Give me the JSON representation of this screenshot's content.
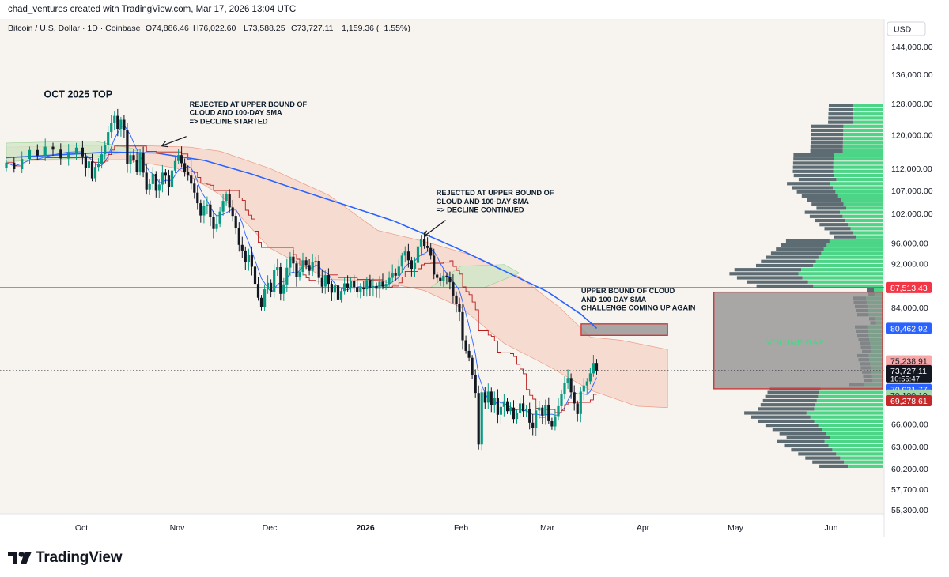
{
  "header": {
    "attribution": "chad_ventures created with TradingView.com, Mar 17, 2026 13:04 UTC"
  },
  "footer": {
    "logo_text": "TradingView"
  },
  "chart_data": {
    "type": "candlestick",
    "instrument": "Bitcoin / U.S. Dollar · 1D · Coinbase",
    "ohlc": {
      "open": "O74,886.46",
      "high": "H76,022.60",
      "low": "L73,588.25",
      "close": "C73,727.11",
      "change": "−1,159.36 (−1.55%)"
    },
    "currency": "USD",
    "ylim": [
      54000,
      150000
    ],
    "x_ticks": [
      {
        "label": "Oct",
        "date": "2025-10-01",
        "bold": false
      },
      {
        "label": "Nov",
        "date": "2025-11-01",
        "bold": false
      },
      {
        "label": "Dec",
        "date": "2025-12-01",
        "bold": false
      },
      {
        "label": "2026",
        "date": "2026-01-01",
        "bold": true
      },
      {
        "label": "Feb",
        "date": "2026-02-01",
        "bold": false
      },
      {
        "label": "Mar",
        "date": "2026-03-01",
        "bold": false
      },
      {
        "label": "Apr",
        "date": "2026-04-01",
        "bold": false
      },
      {
        "label": "May",
        "date": "2026-05-01",
        "bold": false
      },
      {
        "label": "Jun",
        "date": "2026-06-01",
        "bold": false
      }
    ],
    "y_ticks": [
      {
        "value": 144000,
        "label": "144,000.00"
      },
      {
        "value": 136000,
        "label": "136,000.00"
      },
      {
        "value": 128000,
        "label": "128,000.00"
      },
      {
        "value": 120000,
        "label": "120,000.00"
      },
      {
        "value": 112000,
        "label": "112,000.00"
      },
      {
        "value": 107000,
        "label": "107,000.00"
      },
      {
        "value": 102000,
        "label": "102,000.00"
      },
      {
        "value": 96000,
        "label": "96,000.00"
      },
      {
        "value": 92000,
        "label": "92,000.00"
      },
      {
        "value": 84000,
        "label": "84,000.00"
      },
      {
        "value": 66000,
        "label": "66,000.00"
      },
      {
        "value": 63000,
        "label": "63,000.00"
      },
      {
        "value": 60200,
        "label": "60,200.00"
      },
      {
        "value": 57700,
        "label": "57,700.00"
      },
      {
        "value": 55300,
        "label": "55,300.00"
      }
    ],
    "price_badges": [
      {
        "value": 87513.43,
        "label": "87,513.43",
        "color": "#f23645",
        "light": false
      },
      {
        "value": 80462.92,
        "label": "80,462.92",
        "color": "#2962ff",
        "light": false
      },
      {
        "value": 75238.91,
        "label": "75,238.91",
        "color": "#f7a9a9",
        "light": true
      },
      {
        "value": 73727.11,
        "label": "73,727.11",
        "sub": "10:55:47",
        "color": "#131722",
        "light": false
      },
      {
        "value": 70921.77,
        "label": "70,921.77",
        "color": "#2962ff",
        "light": false
      },
      {
        "value": 70100.19,
        "label": "70,100.19",
        "color": "#a5d6a7",
        "light": true
      },
      {
        "value": 69278.61,
        "label": "69,278.61",
        "color": "#c62828",
        "light": false
      }
    ],
    "horizontal_line": {
      "value": 87513.43,
      "color": "#d32f2f"
    },
    "current_price_line": {
      "value": 73727.11
    },
    "colors": {
      "up": "#089981",
      "down": "#131722",
      "sma100": "#2962ff",
      "conversion": "#2962ff",
      "base": "#b71c1c",
      "cloud_bear": "#f6c7b6",
      "cloud_bull": "#cfe8c9",
      "vp_up": "#4cd487",
      "vp_down": "#5d6b73"
    },
    "annotations": [
      {
        "text": [
          "OCT 2025 TOP"
        ],
        "bold": true,
        "size": "large"
      },
      {
        "text": [
          "REJECTED AT UPPER BOUND OF",
          "CLOUD AND 100-DAY SMA",
          "=> DECLINE STARTED"
        ]
      },
      {
        "text": [
          "REJECTED AT UPPER BOUND OF",
          "CLOUD AND 100-DAY SMA",
          "=> DECLINE CONTINUED"
        ]
      },
      {
        "text": [
          "UPPER BOUND OF CLOUD",
          "AND 100-DAY SMA",
          "CHALLENGE COMING UP AGAIN"
        ]
      },
      {
        "text": [
          "VOLUME GAP"
        ],
        "color": "#4cd487"
      }
    ],
    "zones": [
      {
        "name": "target-zone",
        "x": [
          "2026-03-12",
          "2026-04-09"
        ],
        "y": [
          79300,
          81200
        ]
      },
      {
        "name": "volume-gap-zone",
        "x": [
          "2026-04-24",
          "2026-06-17"
        ],
        "y": [
          71000,
          86700
        ]
      }
    ],
    "candles_close": [
      [
        112000,
        113300
      ],
      [
        113300,
        111800
      ],
      [
        111800,
        114200
      ],
      [
        114200,
        116300
      ],
      [
        116300,
        115000
      ],
      [
        115000,
        117100
      ],
      [
        117100,
        116400
      ],
      [
        116400,
        114300
      ],
      [
        114300,
        115700
      ],
      [
        115700,
        116900
      ],
      [
        116900,
        114800
      ],
      [
        114800,
        112100
      ],
      [
        112100,
        113600
      ],
      [
        113600,
        109700
      ],
      [
        109700,
        112300
      ],
      [
        112300,
        113000
      ],
      [
        113000,
        115300
      ],
      [
        115300,
        117600
      ],
      [
        117600,
        120700
      ],
      [
        120700,
        122900
      ],
      [
        122900,
        124800
      ],
      [
        124800,
        121500
      ],
      [
        121500,
        123800
      ],
      [
        123800,
        121200
      ],
      [
        121200,
        113000
      ],
      [
        113000,
        115100
      ],
      [
        115100,
        114000
      ],
      [
        114000,
        111200
      ],
      [
        111200,
        115600
      ],
      [
        115600,
        111000
      ],
      [
        111000,
        107200
      ],
      [
        107200,
        108400
      ],
      [
        108400,
        110700
      ],
      [
        110700,
        106900
      ],
      [
        106900,
        108300
      ],
      [
        108300,
        111000
      ],
      [
        111000,
        110300
      ],
      [
        110300,
        107800
      ],
      [
        107800,
        111500
      ],
      [
        111500,
        113700
      ],
      [
        113700,
        115100
      ],
      [
        115100,
        113200
      ],
      [
        113200,
        111100
      ],
      [
        111100,
        110300
      ],
      [
        110300,
        108500
      ],
      [
        108500,
        106500
      ],
      [
        106500,
        104200
      ],
      [
        104200,
        101600
      ],
      [
        101600,
        103600
      ],
      [
        103600,
        103900
      ],
      [
        103900,
        101200
      ],
      [
        101200,
        98800
      ],
      [
        98800,
        99900
      ],
      [
        99900,
        102400
      ],
      [
        102400,
        104700
      ],
      [
        104700,
        106100
      ],
      [
        106100,
        103300
      ],
      [
        103300,
        101500
      ],
      [
        101500,
        99000
      ],
      [
        99000,
        95600
      ],
      [
        95600,
        94500
      ],
      [
        94500,
        92200
      ],
      [
        92200,
        93600
      ],
      [
        93600,
        91400
      ],
      [
        91400,
        88200
      ],
      [
        88200,
        85700
      ],
      [
        85700,
        84100
      ],
      [
        84100,
        87200
      ],
      [
        87200,
        88400
      ],
      [
        88400,
        86700
      ],
      [
        86700,
        90800
      ],
      [
        90800,
        91300
      ],
      [
        91300,
        86400
      ],
      [
        86400,
        88100
      ],
      [
        88100,
        91200
      ],
      [
        91200,
        93300
      ],
      [
        93300,
        92000
      ],
      [
        92000,
        89400
      ],
      [
        89400,
        90400
      ],
      [
        90400,
        92600
      ],
      [
        92600,
        91700
      ],
      [
        91700,
        90600
      ],
      [
        90600,
        92300
      ],
      [
        92300,
        92500
      ],
      [
        92500,
        89300
      ],
      [
        89300,
        87700
      ],
      [
        87700,
        89800
      ],
      [
        89800,
        88200
      ],
      [
        88200,
        86600
      ],
      [
        86600,
        87900
      ],
      [
        87900,
        85400
      ],
      [
        85400,
        86900
      ],
      [
        86900,
        88300
      ],
      [
        88300,
        87400
      ],
      [
        87400,
        88700
      ],
      [
        88700,
        87600
      ],
      [
        87600,
        86700
      ],
      [
        86700,
        87500
      ],
      [
        87500,
        87200
      ],
      [
        87200,
        88900
      ],
      [
        88900,
        87400
      ],
      [
        87400,
        87800
      ],
      [
        87800,
        87300
      ],
      [
        87300,
        88600
      ],
      [
        88600,
        87700
      ],
      [
        87700,
        88200
      ],
      [
        88200,
        89300
      ],
      [
        89300,
        90200
      ],
      [
        90200,
        89700
      ],
      [
        89700,
        91400
      ],
      [
        91400,
        93500
      ],
      [
        93500,
        94300
      ],
      [
        94300,
        92600
      ],
      [
        92600,
        91000
      ],
      [
        91000,
        92100
      ],
      [
        92100,
        95300
      ],
      [
        95300,
        96800
      ],
      [
        96800,
        95400
      ],
      [
        95400,
        95000
      ],
      [
        95000,
        93500
      ],
      [
        93500,
        89900
      ],
      [
        89900,
        89300
      ],
      [
        89300,
        88800
      ],
      [
        88800,
        89700
      ],
      [
        89700,
        89400
      ],
      [
        89400,
        88500
      ],
      [
        88500,
        86100
      ],
      [
        86100,
        84600
      ],
      [
        84600,
        83200
      ],
      [
        83200,
        78500
      ],
      [
        78500,
        76800
      ],
      [
        76800,
        75700
      ],
      [
        75700,
        73100
      ],
      [
        73100,
        70400
      ],
      [
        70400,
        63300
      ],
      [
        63300,
        70500
      ],
      [
        70500,
        69000
      ],
      [
        69000,
        70600
      ],
      [
        70600,
        68700
      ],
      [
        68700,
        69700
      ],
      [
        69700,
        67300
      ],
      [
        67300,
        68400
      ],
      [
        68400,
        69200
      ],
      [
        69200,
        67800
      ],
      [
        67800,
        68300
      ],
      [
        68300,
        66700
      ],
      [
        66700,
        67600
      ],
      [
        67600,
        68900
      ],
      [
        68900,
        67800
      ],
      [
        67800,
        68100
      ],
      [
        68100,
        66200
      ],
      [
        66200,
        65500
      ],
      [
        65500,
        67900
      ],
      [
        67900,
        68300
      ],
      [
        68300,
        67200
      ],
      [
        67200,
        68700
      ],
      [
        68700,
        66400
      ],
      [
        66400,
        65700
      ],
      [
        65700,
        67100
      ],
      [
        67100,
        68500
      ],
      [
        68500,
        70300
      ],
      [
        70300,
        71900
      ],
      [
        71900,
        72600
      ],
      [
        72600,
        70500
      ],
      [
        70500,
        68900
      ],
      [
        68900,
        67400
      ],
      [
        67400,
        70600
      ],
      [
        70600,
        71500
      ],
      [
        71500,
        72100
      ],
      [
        72100,
        73300
      ],
      [
        73300,
        74900
      ],
      [
        74900,
        73727
      ]
    ]
  }
}
